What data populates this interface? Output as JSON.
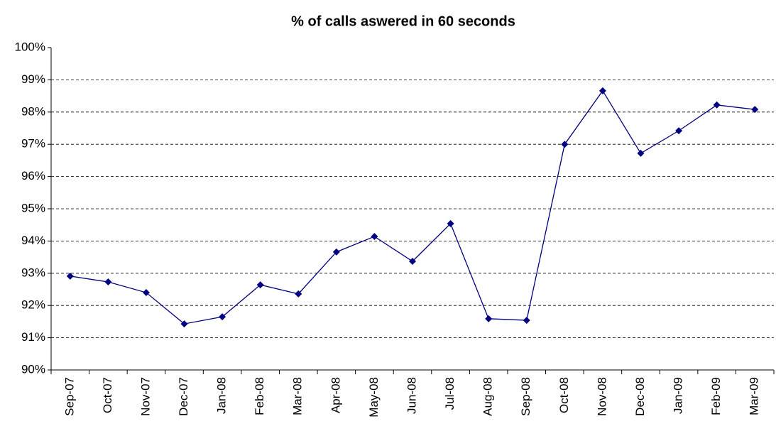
{
  "chart_data": {
    "type": "line",
    "title": "% of calls aswered in 60 seconds",
    "categories": [
      "Sep-07",
      "Oct-07",
      "Nov-07",
      "Dec-07",
      "Jan-08",
      "Feb-08",
      "Mar-08",
      "Apr-08",
      "May-08",
      "Jun-08",
      "Jul-08",
      "Aug-08",
      "Sep-08",
      "Oct-08",
      "Nov-08",
      "Dec-08",
      "Jan-09",
      "Feb-09",
      "Mar-09"
    ],
    "values": [
      92.91,
      92.73,
      92.4,
      91.43,
      91.65,
      92.64,
      92.36,
      93.66,
      94.14,
      93.37,
      94.54,
      91.59,
      91.54,
      97.0,
      98.66,
      96.72,
      97.42,
      98.22,
      98.08
    ],
    "color": "#000080",
    "ylim": [
      90,
      100
    ],
    "yticks": [
      {
        "value": 90,
        "label": "90%"
      },
      {
        "value": 91,
        "label": "91%"
      },
      {
        "value": 92,
        "label": "92%"
      },
      {
        "value": 93,
        "label": "93%"
      },
      {
        "value": 94,
        "label": "94%"
      },
      {
        "value": 95,
        "label": "95%"
      },
      {
        "value": 96,
        "label": "96%"
      },
      {
        "value": 97,
        "label": "97%"
      },
      {
        "value": 98,
        "label": "98%"
      },
      {
        "value": 99,
        "label": "99%"
      },
      {
        "value": 100,
        "label": "100%"
      }
    ],
    "grid": true
  }
}
